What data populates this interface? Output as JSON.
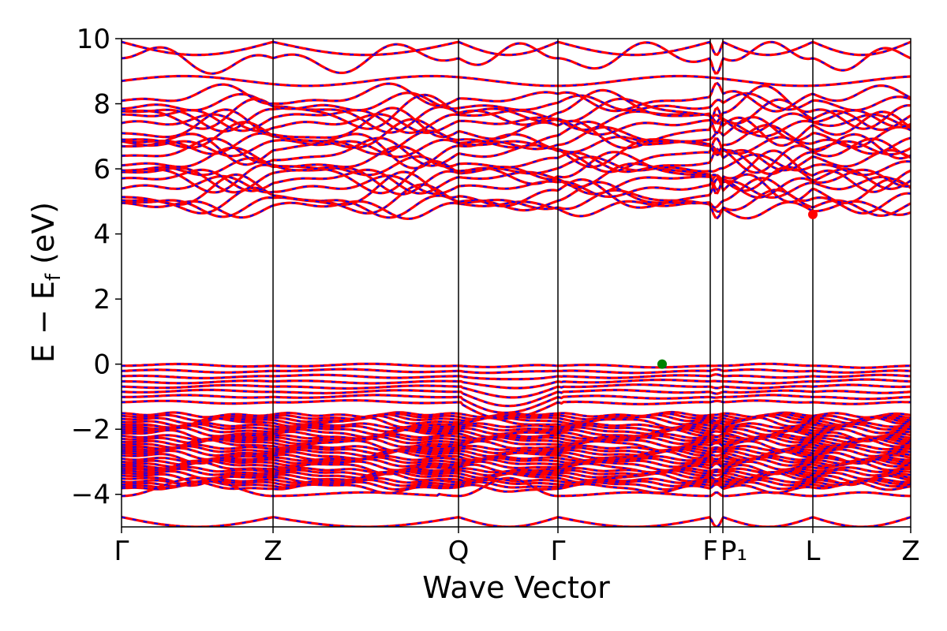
{
  "chart_data": {
    "type": "line",
    "xlabel": "Wave Vector",
    "ylabel": "E − E_f (eV)",
    "ylabel_main": "E − E",
    "ylabel_sub": "f",
    "ylabel_tail": " (eV)",
    "ylim": [
      -5,
      10
    ],
    "yticks": [
      -4,
      -2,
      0,
      2,
      4,
      6,
      8,
      10
    ],
    "ytick_labels": [
      "−4",
      "−2",
      "0",
      "2",
      "4",
      "6",
      "8",
      "10"
    ],
    "xlim": [
      0,
      1
    ],
    "high_symmetry_points": [
      {
        "label": "Γ",
        "x": 0.0
      },
      {
        "label": "Z",
        "x": 0.192
      },
      {
        "label": "Q",
        "x": 0.427
      },
      {
        "label": "Γ",
        "x": 0.553
      },
      {
        "label": "F",
        "x": 0.746
      },
      {
        "label": "P₁",
        "x": 0.762
      },
      {
        "label": "L",
        "x": 0.876
      },
      {
        "label": "Z",
        "x": 1.0
      }
    ],
    "series": [
      {
        "color": "#ff0000",
        "style": "solid"
      },
      {
        "color": "#0000ff",
        "style": "dashed"
      }
    ],
    "vbm": {
      "x": 0.685,
      "y": 0.0,
      "color": "#008000"
    },
    "cbm": {
      "x": 0.876,
      "y": 4.6,
      "color": "#ff0000"
    },
    "conduction_band_min": 4.6,
    "valence_band_max": 0.0
  }
}
